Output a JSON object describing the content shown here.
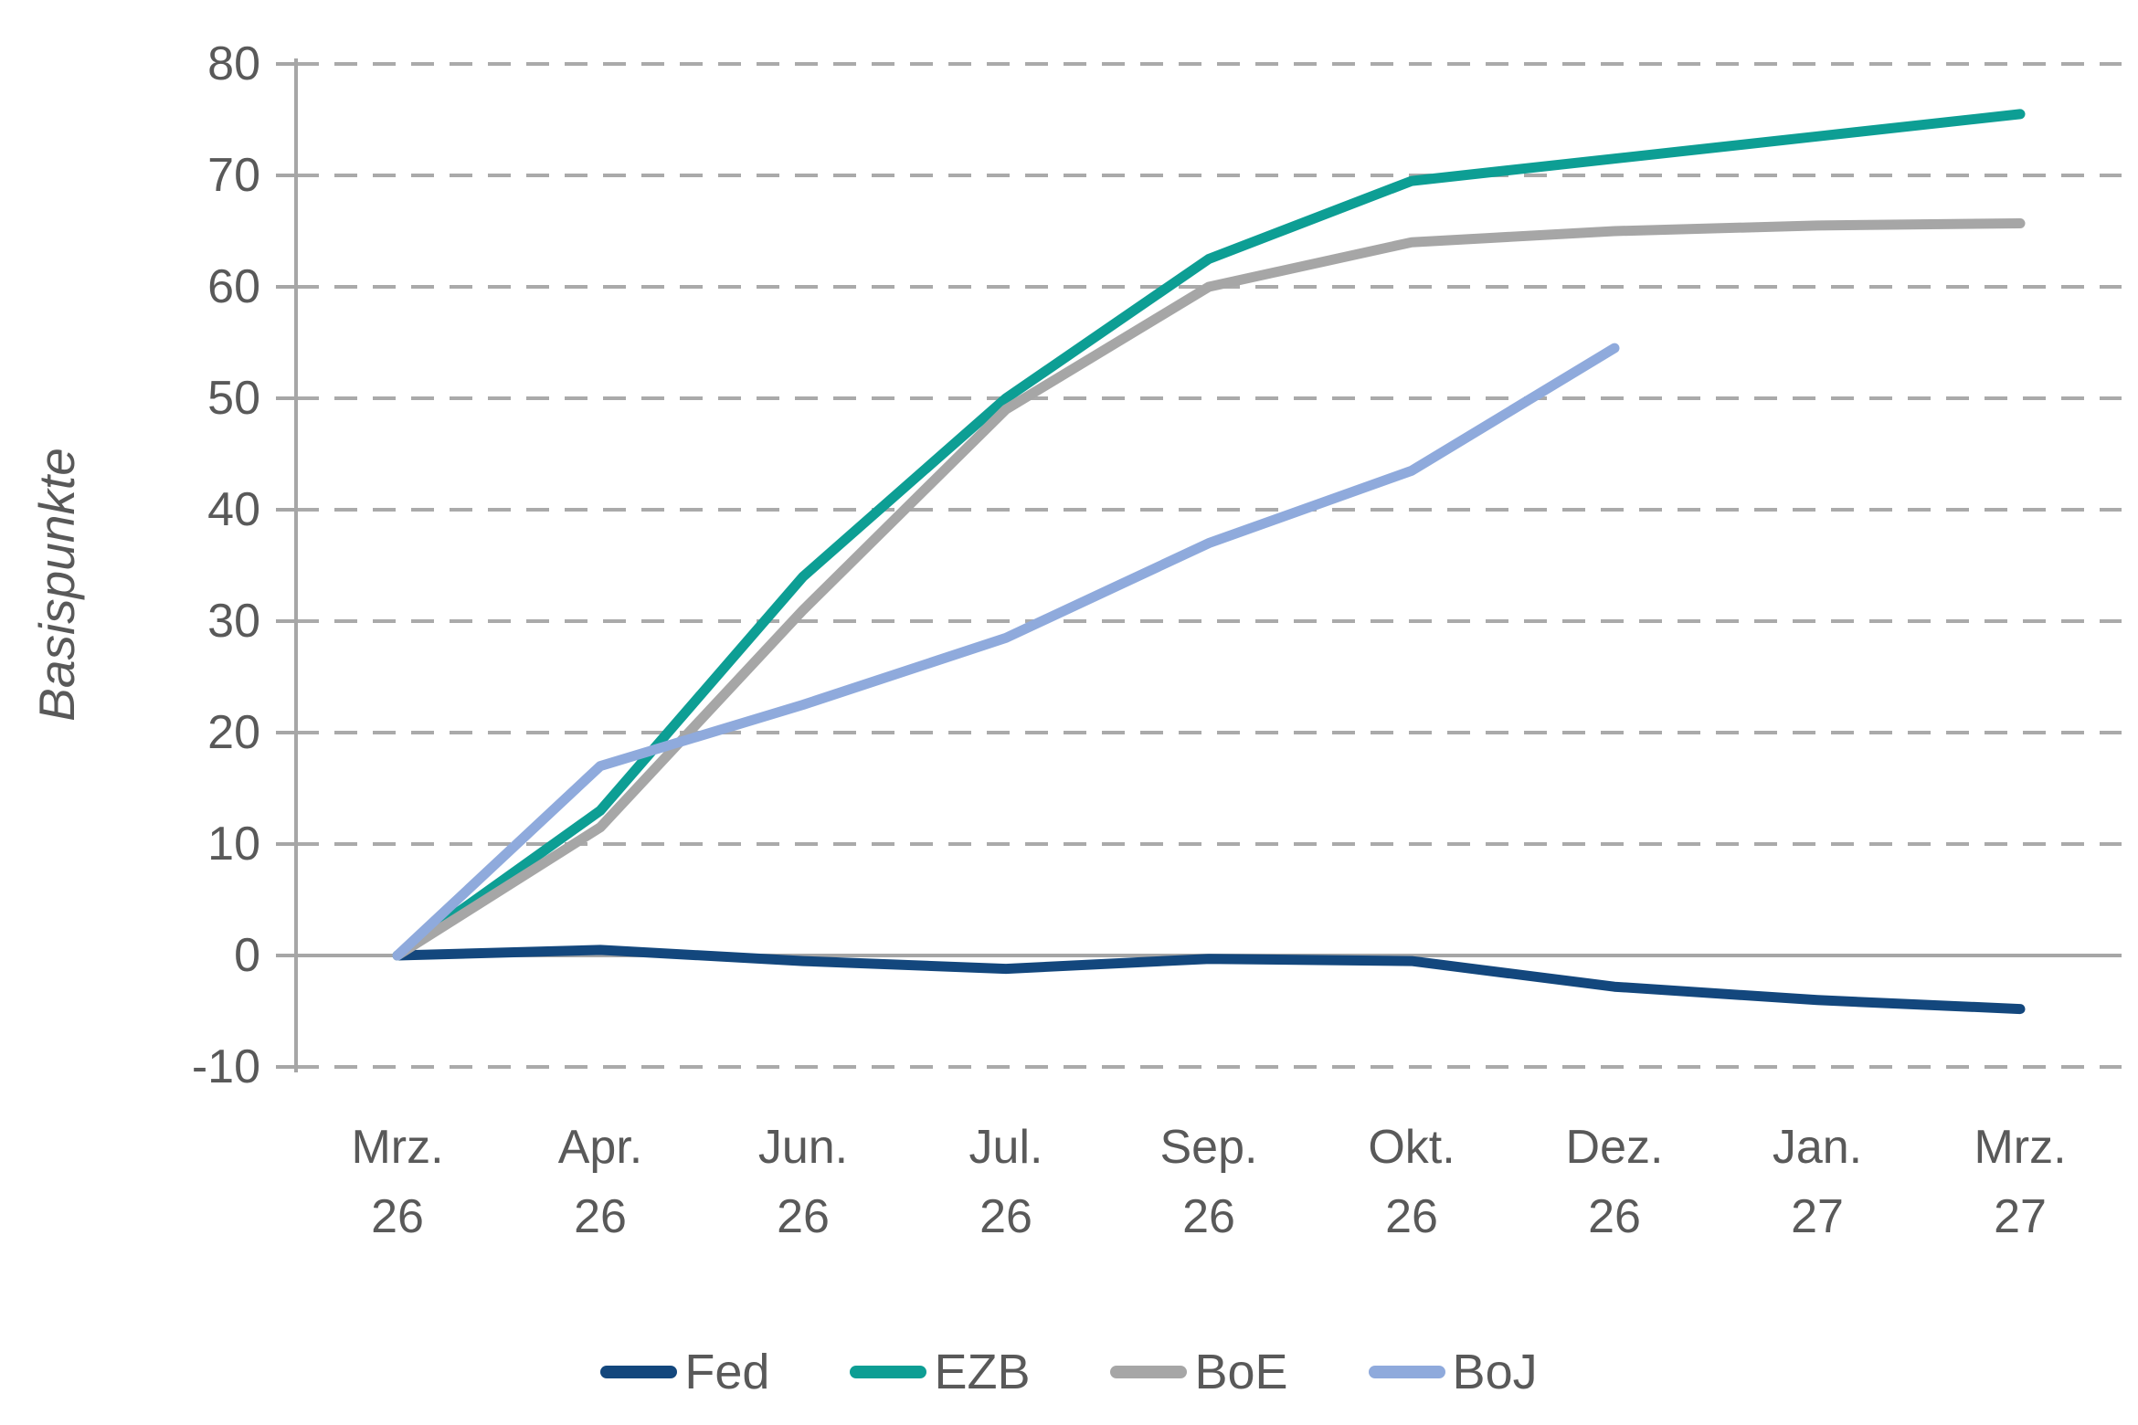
{
  "figure": {
    "background": "#ffffff",
    "text_color": "#595959"
  },
  "chart_data": {
    "type": "line",
    "title": "",
    "xlabel": "",
    "ylabel": "Basispunkte",
    "ylim": [
      -10,
      80
    ],
    "y_ticks": [
      80,
      70,
      60,
      50,
      40,
      30,
      20,
      10,
      0,
      -10
    ],
    "grid": "dashed-horizontal",
    "legend_position": "bottom",
    "categories": [
      [
        "Mrz.",
        "26"
      ],
      [
        "Apr.",
        "26"
      ],
      [
        "Jun.",
        "26"
      ],
      [
        "Jul.",
        "26"
      ],
      [
        "Sep.",
        "26"
      ],
      [
        "Okt.",
        "26"
      ],
      [
        "Dez.",
        "26"
      ],
      [
        "Jan.",
        "27"
      ],
      [
        "Mrz.",
        "27"
      ]
    ],
    "series": [
      {
        "name": "Fed",
        "color": "#13477D",
        "values": [
          0,
          0.5,
          -0.5,
          -1.2,
          -0.3,
          -0.5,
          -2.8,
          -4,
          -4.8
        ]
      },
      {
        "name": "EZB",
        "color": "#0D9E94",
        "values": [
          0,
          13,
          34,
          50,
          62.5,
          69.5,
          71.5,
          73.5,
          75.5
        ]
      },
      {
        "name": "BoE",
        "color": "#A6A6A6",
        "values": [
          0,
          11.5,
          31,
          49,
          60,
          64,
          65,
          65.5,
          65.7
        ]
      },
      {
        "name": "BoJ",
        "color": "#8FAADC",
        "values": [
          0,
          17,
          22.5,
          28.5,
          37,
          43.5,
          54.5,
          null,
          null
        ]
      }
    ],
    "axis_color": "#A6A6A6",
    "gridline_color": "#AAAAAA",
    "zero_line_color": "#A6A6A6"
  }
}
